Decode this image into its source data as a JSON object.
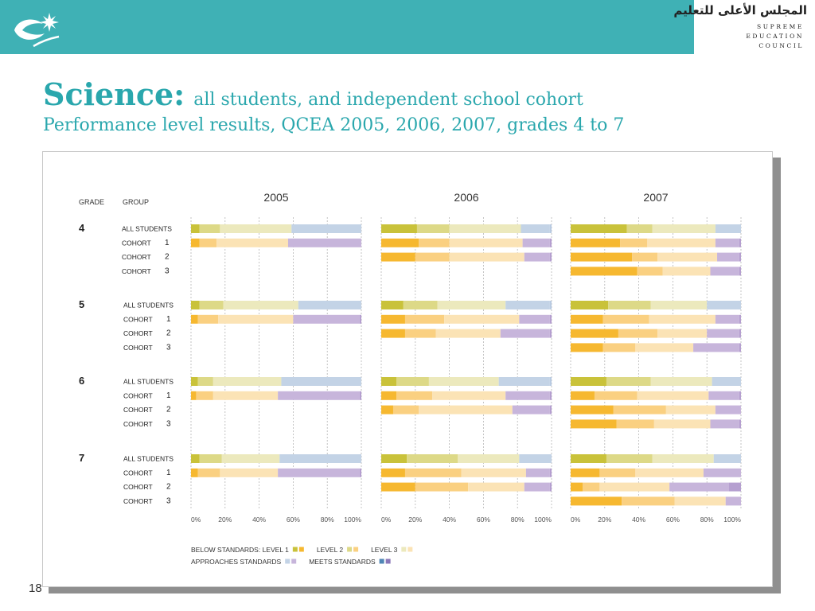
{
  "header": {
    "council_arabic": "المجلس الأعلى للتعليم",
    "council_en": [
      "SUPREME",
      "EDUCATION",
      "COUNCIL"
    ],
    "brand_color": "#3fb1b5"
  },
  "slide": {
    "title_main": "Science:",
    "title_sub": "all students, and independent school cohort",
    "title_line2": "Performance level results, QCEA 2005, 2006, 2007, grades 4 to 7",
    "page_number": "18"
  },
  "chart_data": {
    "type": "bar",
    "subtype": "stacked-horizontal-100",
    "column_headers": {
      "grade": "GRADE",
      "group": "GROUP"
    },
    "years": [
      "2005",
      "2006",
      "2007"
    ],
    "x_ticks": [
      "0%",
      "20%",
      "40%",
      "60%",
      "80%",
      "100%"
    ],
    "xlim": [
      0,
      100
    ],
    "grid": "dashed vertical at 20% intervals",
    "segment_order": [
      "level1",
      "level2",
      "level3",
      "approaches",
      "meets"
    ],
    "palette": {
      "all": [
        "#c9c23a",
        "#ddd987",
        "#ece9bd",
        "#c3d3e6",
        "#b9cbe2"
      ],
      "cohort": [
        "#f6b830",
        "#fad081",
        "#fbe3b5",
        "#c7b5db",
        "#b59fd0"
      ]
    },
    "groups": [
      {
        "grade": "4",
        "rows": [
          {
            "label": "ALL STUDENTS",
            "cohort": "",
            "kind": "all",
            "data": [
              [
                5,
                12,
                42,
                41,
                0
              ],
              [
                21,
                19,
                42,
                17,
                1
              ],
              [
                33,
                15,
                37,
                15,
                0
              ]
            ]
          },
          {
            "label": "COHORT",
            "cohort": "1",
            "kind": "cohort",
            "data": [
              [
                5,
                10,
                42,
                43,
                0
              ],
              [
                22,
                18,
                43,
                16,
                1
              ],
              [
                29,
                16,
                40,
                14,
                1
              ]
            ]
          },
          {
            "label": "COHORT",
            "cohort": "2",
            "kind": "cohort",
            "data": [
              null,
              [
                20,
                20,
                44,
                15,
                1
              ],
              [
                36,
                15,
                35,
                13,
                1
              ]
            ]
          },
          {
            "label": "COHORT",
            "cohort": "3",
            "kind": "cohort",
            "data": [
              null,
              null,
              [
                39,
                15,
                28,
                17,
                1
              ]
            ]
          }
        ]
      },
      {
        "grade": "5",
        "rows": [
          {
            "label": "ALL STUDENTS",
            "cohort": "",
            "kind": "all",
            "data": [
              [
                5,
                14,
                44,
                37,
                0
              ],
              [
                13,
                20,
                40,
                26,
                1
              ],
              [
                22,
                25,
                33,
                20,
                0
              ]
            ]
          },
          {
            "label": "COHORT",
            "cohort": "1",
            "kind": "cohort",
            "data": [
              [
                4,
                12,
                44,
                39,
                1
              ],
              [
                14,
                23,
                44,
                18,
                1
              ],
              [
                19,
                27,
                39,
                14,
                1
              ]
            ]
          },
          {
            "label": "COHORT",
            "cohort": "2",
            "kind": "cohort",
            "data": [
              null,
              [
                14,
                18,
                38,
                29,
                1
              ],
              [
                28,
                23,
                29,
                19,
                1
              ]
            ]
          },
          {
            "label": "COHORT",
            "cohort": "3",
            "kind": "cohort",
            "data": [
              null,
              null,
              [
                19,
                19,
                34,
                27,
                1
              ]
            ]
          }
        ]
      },
      {
        "grade": "6",
        "rows": [
          {
            "label": "ALL STUDENTS",
            "cohort": "",
            "kind": "all",
            "data": [
              [
                4,
                9,
                40,
                47,
                0
              ],
              [
                9,
                19,
                41,
                30,
                1
              ],
              [
                21,
                26,
                36,
                17,
                0
              ]
            ]
          },
          {
            "label": "COHORT",
            "cohort": "1",
            "kind": "cohort",
            "data": [
              [
                3,
                10,
                38,
                48,
                1
              ],
              [
                9,
                21,
                43,
                26,
                1
              ],
              [
                14,
                25,
                42,
                18,
                1
              ]
            ]
          },
          {
            "label": "COHORT",
            "cohort": "2",
            "kind": "cohort",
            "data": [
              null,
              [
                7,
                15,
                55,
                22,
                1
              ],
              [
                25,
                31,
                29,
                15,
                0
              ]
            ]
          },
          {
            "label": "COHORT",
            "cohort": "3",
            "kind": "cohort",
            "data": [
              null,
              null,
              [
                27,
                22,
                33,
                17,
                1
              ]
            ]
          }
        ]
      },
      {
        "grade": "7",
        "rows": [
          {
            "label": "ALL STUDENTS",
            "cohort": "",
            "kind": "all",
            "data": [
              [
                5,
                13,
                34,
                48,
                0
              ],
              [
                15,
                30,
                36,
                19,
                0
              ],
              [
                21,
                27,
                36,
                16,
                0
              ]
            ]
          },
          {
            "label": "COHORT",
            "cohort": "1",
            "kind": "cohort",
            "data": [
              [
                4,
                13,
                34,
                48,
                1
              ],
              [
                14,
                33,
                38,
                14,
                1
              ],
              [
                17,
                21,
                40,
                22,
                0
              ]
            ]
          },
          {
            "label": "COHORT",
            "cohort": "2",
            "kind": "cohort",
            "data": [
              null,
              [
                20,
                31,
                33,
                15,
                1
              ],
              [
                7,
                10,
                41,
                35,
                7
              ]
            ]
          },
          {
            "label": "COHORT",
            "cohort": "3",
            "kind": "cohort",
            "data": [
              null,
              null,
              [
                30,
                31,
                30,
                9,
                0
              ]
            ]
          }
        ]
      }
    ],
    "legend": {
      "row1": [
        {
          "label": "BELOW STANDARDS: LEVEL 1",
          "colors": [
            "#c9c23a",
            "#f6b830"
          ]
        },
        {
          "label": "LEVEL 2",
          "colors": [
            "#ddd987",
            "#fad081"
          ]
        },
        {
          "label": "LEVEL 3",
          "colors": [
            "#ece9bd",
            "#fbe3b5"
          ]
        }
      ],
      "row2": [
        {
          "label": "APPROACHES STANDARDS",
          "colors": [
            "#c3d3e6",
            "#c7b5db"
          ]
        },
        {
          "label": "MEETS STANDARDS",
          "colors": [
            "#4f86b5",
            "#8a77b8"
          ]
        }
      ]
    }
  }
}
